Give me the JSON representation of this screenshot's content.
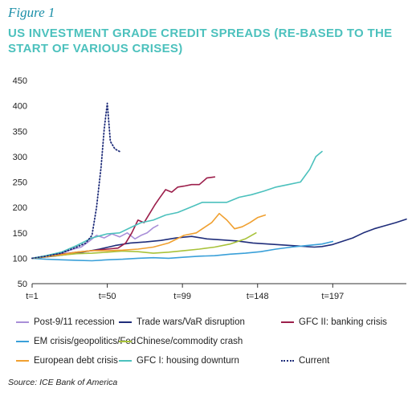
{
  "figure_label": "Figure 1",
  "title_line1": "US INVESTMENT GRADE CREDIT SPREADS (RE-BASED TO THE",
  "title_line2": "START OF VARIOUS CRISES)",
  "source": "Source: ICE Bank of America",
  "chart_data": {
    "type": "line",
    "title": "US INVESTMENT GRADE CREDIT SPREADS (RE-BASED TO THE START OF VARIOUS CRISES)",
    "xlabel": "",
    "ylabel": "",
    "xlim": [
      1,
      245
    ],
    "ylim": [
      50,
      450
    ],
    "x_ticks": [
      1,
      50,
      99,
      148,
      197
    ],
    "x_tick_labels": [
      "t=1",
      "t=50",
      "t=99",
      "t=148",
      "t=197"
    ],
    "y_ticks": [
      50,
      100,
      150,
      200,
      250,
      300,
      350,
      400,
      450
    ],
    "grid": false,
    "legend_position": "bottom",
    "series": [
      {
        "name": "Post-9/11 recession",
        "color": "#a98fd8",
        "dash": "solid",
        "x": [
          1,
          8,
          15,
          22,
          28,
          33,
          38,
          43,
          48,
          53,
          58,
          63,
          68,
          72,
          76,
          80,
          83
        ],
        "y": [
          100,
          103,
          108,
          112,
          118,
          122,
          133,
          145,
          140,
          148,
          142,
          150,
          138,
          145,
          150,
          160,
          165
        ]
      },
      {
        "name": "Trade wars/VaR disruption",
        "color": "#1f2d7a",
        "dash": "solid",
        "x": [
          1,
          15,
          30,
          45,
          55,
          65,
          75,
          85,
          95,
          105,
          115,
          125,
          135,
          145,
          155,
          165,
          175,
          185,
          190,
          197,
          203,
          210,
          217,
          224,
          231,
          238,
          245
        ],
        "y": [
          100,
          104,
          110,
          118,
          125,
          130,
          132,
          135,
          140,
          143,
          138,
          136,
          134,
          130,
          128,
          126,
          124,
          122,
          123,
          127,
          133,
          140,
          150,
          158,
          164,
          170,
          177
        ]
      },
      {
        "name": "GFC II: banking crisis",
        "color": "#9c1f4b",
        "dash": "solid",
        "x": [
          1,
          10,
          20,
          30,
          40,
          50,
          57,
          62,
          66,
          70,
          74,
          78,
          81,
          84,
          88,
          92,
          96,
          100,
          105,
          110,
          115,
          120
        ],
        "y": [
          100,
          104,
          108,
          112,
          115,
          118,
          120,
          130,
          150,
          175,
          170,
          190,
          205,
          218,
          235,
          230,
          240,
          242,
          245,
          245,
          258,
          260
        ]
      },
      {
        "name": "EM crisis/geopolitics/Fed",
        "color": "#3aa0d9",
        "dash": "solid",
        "x": [
          1,
          10,
          20,
          30,
          40,
          50,
          60,
          70,
          80,
          90,
          100,
          110,
          120,
          130,
          140,
          150,
          160,
          170,
          180,
          190,
          197
        ],
        "y": [
          100,
          98,
          97,
          96,
          95,
          97,
          98,
          100,
          101,
          100,
          102,
          104,
          105,
          108,
          110,
          113,
          118,
          122,
          125,
          128,
          133
        ]
      },
      {
        "name": "Chinese/commodity crash",
        "color": "#a8c23a",
        "dash": "solid",
        "x": [
          1,
          10,
          20,
          30,
          40,
          50,
          60,
          70,
          80,
          90,
          100,
          110,
          120,
          130,
          140,
          147
        ],
        "y": [
          100,
          103,
          106,
          109,
          110,
          112,
          114,
          113,
          110,
          112,
          115,
          118,
          122,
          128,
          138,
          150
        ]
      },
      {
        "name": "European debt crisis",
        "color": "#f0a030",
        "dash": "solid",
        "x": [
          1,
          10,
          20,
          30,
          40,
          50,
          60,
          70,
          80,
          90,
          100,
          108,
          113,
          118,
          123,
          128,
          133,
          138,
          143,
          148,
          153
        ],
        "y": [
          100,
          103,
          107,
          112,
          115,
          115,
          116,
          118,
          122,
          130,
          145,
          150,
          160,
          170,
          188,
          175,
          158,
          162,
          170,
          180,
          185
        ]
      },
      {
        "name": "GFC I: housing downturn",
        "color": "#4cc1bd",
        "dash": "solid",
        "x": [
          1,
          10,
          20,
          30,
          40,
          50,
          58,
          65,
          72,
          80,
          88,
          96,
          104,
          112,
          120,
          128,
          136,
          144,
          152,
          160,
          168,
          176,
          182,
          186,
          190
        ],
        "y": [
          100,
          105,
          112,
          125,
          140,
          148,
          150,
          160,
          170,
          175,
          185,
          190,
          200,
          210,
          210,
          210,
          220,
          225,
          232,
          240,
          245,
          250,
          275,
          300,
          310
        ]
      },
      {
        "name": "Current",
        "color": "#1f2d7a",
        "dash": "dotted",
        "x": [
          1,
          10,
          20,
          30,
          36,
          40,
          43,
          46,
          48,
          50,
          52,
          55,
          58
        ],
        "y": [
          100,
          104,
          110,
          122,
          130,
          145,
          200,
          280,
          355,
          405,
          330,
          315,
          310
        ]
      }
    ]
  },
  "legend_rows": [
    [
      0,
      1,
      2
    ],
    [
      3,
      4
    ],
    [
      5,
      6,
      7
    ]
  ]
}
